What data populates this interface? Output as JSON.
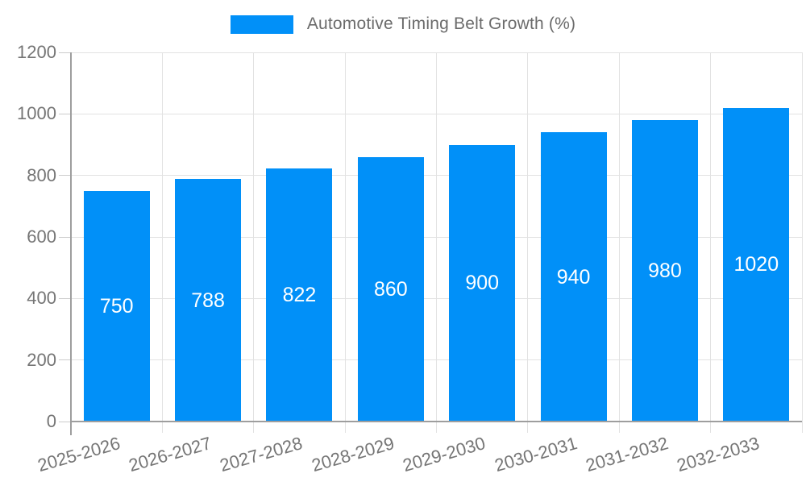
{
  "chart_data": {
    "type": "bar",
    "title": "Automotive Timing Belt Growth (%)",
    "legend": {
      "label": "Automotive Timing Belt Growth (%)",
      "position": "top"
    },
    "categories": [
      "2025-2026",
      "2026-2027",
      "2027-2028",
      "2028-2029",
      "2029-2030",
      "2030-2031",
      "2031-2032",
      "2032-2033"
    ],
    "series": [
      {
        "name": "Automotive Timing Belt Growth (%)",
        "values": [
          750,
          788,
          822,
          860,
          900,
          940,
          980,
          1020
        ]
      }
    ],
    "value_labels": [
      "750",
      "788",
      "822",
      "860",
      "900",
      "940",
      "980",
      "1020"
    ],
    "xlabel": "",
    "ylabel": "",
    "ylim": [
      0,
      1200
    ],
    "yticks": [
      0,
      200,
      400,
      600,
      800,
      1000,
      1200
    ],
    "grid": true,
    "colors": {
      "bar": "#0190f8",
      "value_label": "#ffffff",
      "axis_label": "#757575",
      "legend_text": "#6b6b6b",
      "gridline": "#e2e2e2",
      "axis_line": "#9e9e9e",
      "background": "#ffffff"
    }
  }
}
